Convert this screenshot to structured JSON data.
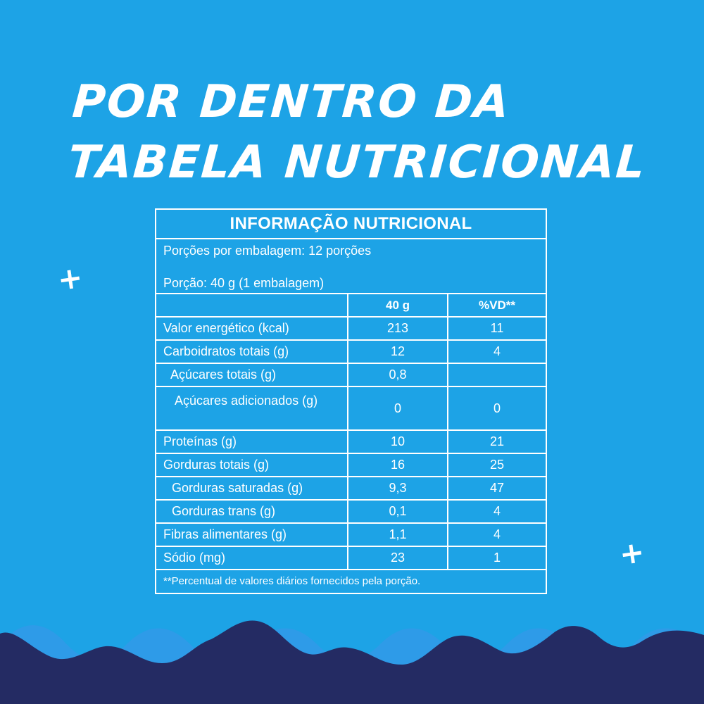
{
  "headline": {
    "line1": "POR DENTRO DA",
    "line2": "TABELA NUTRICIONAL"
  },
  "decorations": {
    "plus_glyph": "+"
  },
  "table": {
    "title": "INFORMAÇÃO NUTRICIONAL",
    "servings_per_package": "Porções por embalagem: 12 porções",
    "serving_size": "Porção: 40 g (1 embalagem)",
    "columns": [
      "",
      "40 g",
      "%VD**"
    ],
    "rows": [
      {
        "label": "Valor energético (kcal)",
        "amount": "213",
        "vd": "11"
      },
      {
        "label": "Carboidratos totais (g)",
        "amount": "12",
        "vd": "4"
      },
      {
        "label": "Açúcares totais (g)",
        "amount": "0,8",
        "vd": ""
      },
      {
        "label": "Açúcares adicionados (g)",
        "amount": "0",
        "vd": "0"
      },
      {
        "label": "Proteínas (g)",
        "amount": "10",
        "vd": "21"
      },
      {
        "label": "Gorduras totais (g)",
        "amount": "16",
        "vd": "25"
      },
      {
        "label": "Gorduras saturadas (g)",
        "amount": "9,3",
        "vd": "47"
      },
      {
        "label": "Gorduras trans (g)",
        "amount": "0,1",
        "vd": "4"
      },
      {
        "label": "Fibras alimentares (g)",
        "amount": "1,1",
        "vd": "4"
      },
      {
        "label": "Sódio (mg)",
        "amount": "23",
        "vd": "1"
      }
    ],
    "footnote": "**Percentual de valores diários fornecidos pela porção."
  },
  "colors": {
    "background": "#1da3e6",
    "wave_light": "#2e9be8",
    "wave_dark": "#242b63",
    "text": "#ffffff"
  }
}
